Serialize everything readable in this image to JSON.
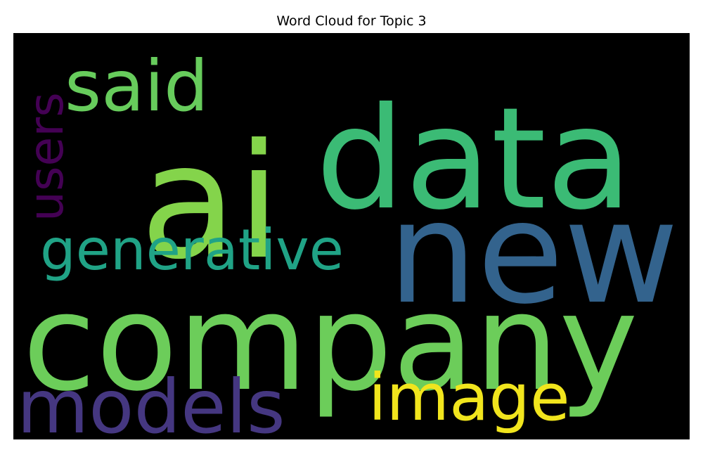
{
  "chart_data": {
    "type": "wordcloud",
    "title": "Word Cloud for Topic 3",
    "background": "#000000",
    "colormap": "viridis",
    "words": [
      {
        "text": "company",
        "color": "#6ccd5a"
      },
      {
        "text": "ai",
        "color": "#84d44b"
      },
      {
        "text": "data",
        "color": "#3bbb75"
      },
      {
        "text": "new",
        "color": "#33638d"
      },
      {
        "text": "models",
        "color": "#453781"
      },
      {
        "text": "generative",
        "color": "#20a386"
      },
      {
        "text": "said",
        "color": "#67cc5c"
      },
      {
        "text": "image",
        "color": "#f1e51d"
      },
      {
        "text": "users",
        "color": "#440154"
      }
    ]
  }
}
